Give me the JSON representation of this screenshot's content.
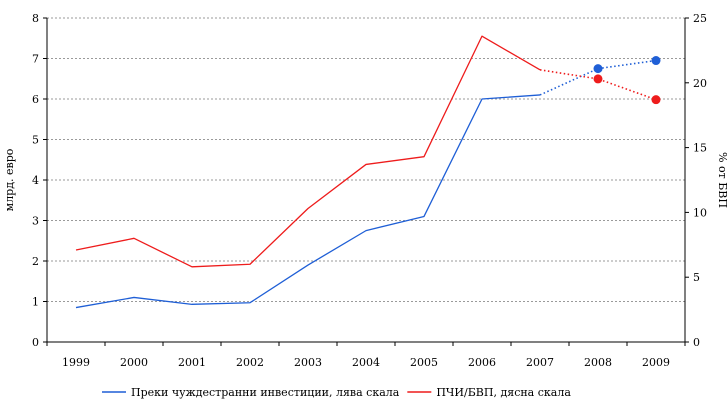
{
  "chart_data": {
    "type": "line",
    "x": [
      "1999",
      "2000",
      "2001",
      "2002",
      "2003",
      "2004",
      "2005",
      "2006",
      "2007",
      "2008",
      "2009"
    ],
    "y_left": {
      "label": "млрд. евро",
      "ylim": [
        0,
        8
      ],
      "ticks": [
        "0",
        "1",
        "2",
        "3",
        "4",
        "5",
        "6",
        "7",
        "8"
      ]
    },
    "y_right": {
      "label": "% от БВП",
      "ylim": [
        0,
        25
      ],
      "ticks": [
        "0",
        "5",
        "10",
        "15",
        "20",
        "25"
      ]
    },
    "grid": "horizontal dotted",
    "legend_position": "bottom",
    "series": [
      {
        "name": "Преки чуждестранни инвестиции, лява скала",
        "axis": "left",
        "color": "#1f5fd6",
        "values": [
          0.85,
          1.1,
          0.93,
          0.97,
          1.9,
          2.75,
          3.1,
          6.0,
          6.1,
          6.75,
          6.95
        ],
        "solid_through": "2007",
        "projected_points": [
          "2008",
          "2009"
        ]
      },
      {
        "name": "ПЧИ/БВП, дясна скала",
        "axis": "right",
        "color": "#ee1c1c",
        "values": [
          7.1,
          8.0,
          5.8,
          6.0,
          10.3,
          13.7,
          14.3,
          23.6,
          21.0,
          20.3,
          18.7
        ],
        "solid_through": "2007",
        "projected_points": [
          "2008",
          "2009"
        ]
      }
    ]
  }
}
